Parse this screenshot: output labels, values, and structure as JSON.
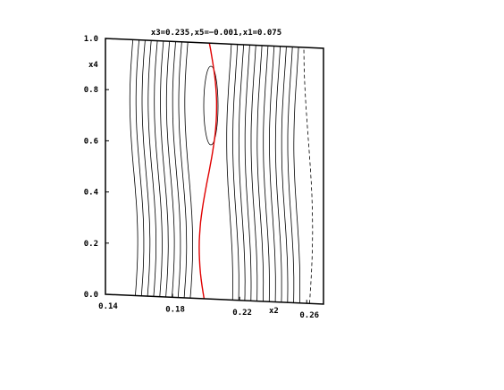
{
  "chart_data": {
    "type": "contour",
    "title": "x3=0.235,x5=−0.001,x1=0.075",
    "xlabel": "x2",
    "ylabel": "x4",
    "xlim": [
      0.14,
      0.27
    ],
    "ylim": [
      0.0,
      1.0
    ],
    "x_ticks": [
      "0.14",
      "0.18",
      "0.22",
      "0.26"
    ],
    "y_ticks": [
      "0.0",
      "0.2",
      "0.4",
      "0.6",
      "0.8",
      "1.0"
    ],
    "contour_colors": {
      "levels": "#000000",
      "highlighted": "#e00000"
    },
    "dashed_levels": "negative"
  }
}
